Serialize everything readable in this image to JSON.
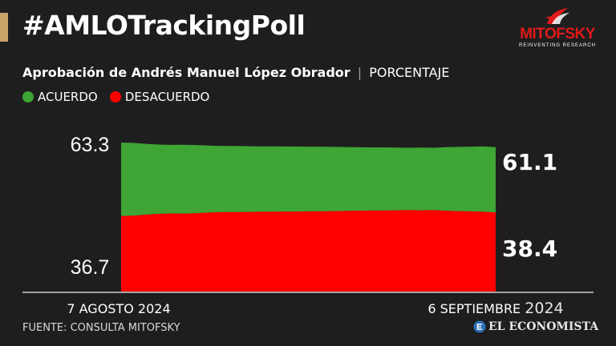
{
  "header": {
    "title": "#AMLOTrackingPoll",
    "logo_name": "MITOFSKY",
    "logo_tagline": "REINVENTING RESEARCH",
    "accent_color": "#c9a46a"
  },
  "subtitle": {
    "main": "Aprobación de Andrés Manuel López Obrador",
    "separator": "|",
    "unit": "PORCENTAJE"
  },
  "legend": [
    {
      "label": "ACUERDO",
      "color": "#3fa535"
    },
    {
      "label": "DESACUERDO",
      "color": "#ff0000"
    }
  ],
  "chart_data": {
    "type": "area",
    "title": "Aprobación de Andrés Manuel López Obrador",
    "ylabel": "PORCENTAJE",
    "xlabel": "",
    "x_start_label": "7 AGOSTO 2024",
    "x_end_label_main": "6 SEPTIEMBRE",
    "x_end_label_year": "2024",
    "y_top_label": "63.3",
    "y_bottom_label": "36.7",
    "end_labels": {
      "acuerdo": "61.1",
      "desacuerdo": "38.4"
    },
    "series": [
      {
        "name": "ACUERDO",
        "color": "#3fa535",
        "values": [
          63.3,
          63.1,
          62.6,
          62.2,
          62.0,
          62.1,
          61.9,
          61.6,
          61.4,
          61.4,
          61.3,
          61.2,
          61.2,
          61.1,
          61.1,
          61.0,
          61.0,
          60.9,
          60.8,
          60.7,
          60.6,
          60.6,
          60.5,
          60.4,
          60.5,
          60.4,
          60.7,
          60.9,
          61.0,
          61.2,
          61.1
        ]
      },
      {
        "name": "DESACUERDO",
        "color": "#ff0000",
        "values": [
          36.7,
          36.9,
          37.4,
          37.8,
          38.0,
          37.9,
          38.1,
          38.4,
          38.6,
          38.6,
          38.7,
          38.8,
          38.8,
          38.9,
          38.9,
          39.0,
          39.0,
          39.1,
          39.2,
          39.3,
          39.4,
          39.4,
          39.5,
          39.6,
          39.5,
          39.6,
          39.3,
          39.1,
          39.0,
          38.8,
          38.4
        ]
      }
    ]
  },
  "footer": {
    "source": "FUENTE: CONSULTA MITOFSKY",
    "brand": "EL ECONOMISTA"
  }
}
